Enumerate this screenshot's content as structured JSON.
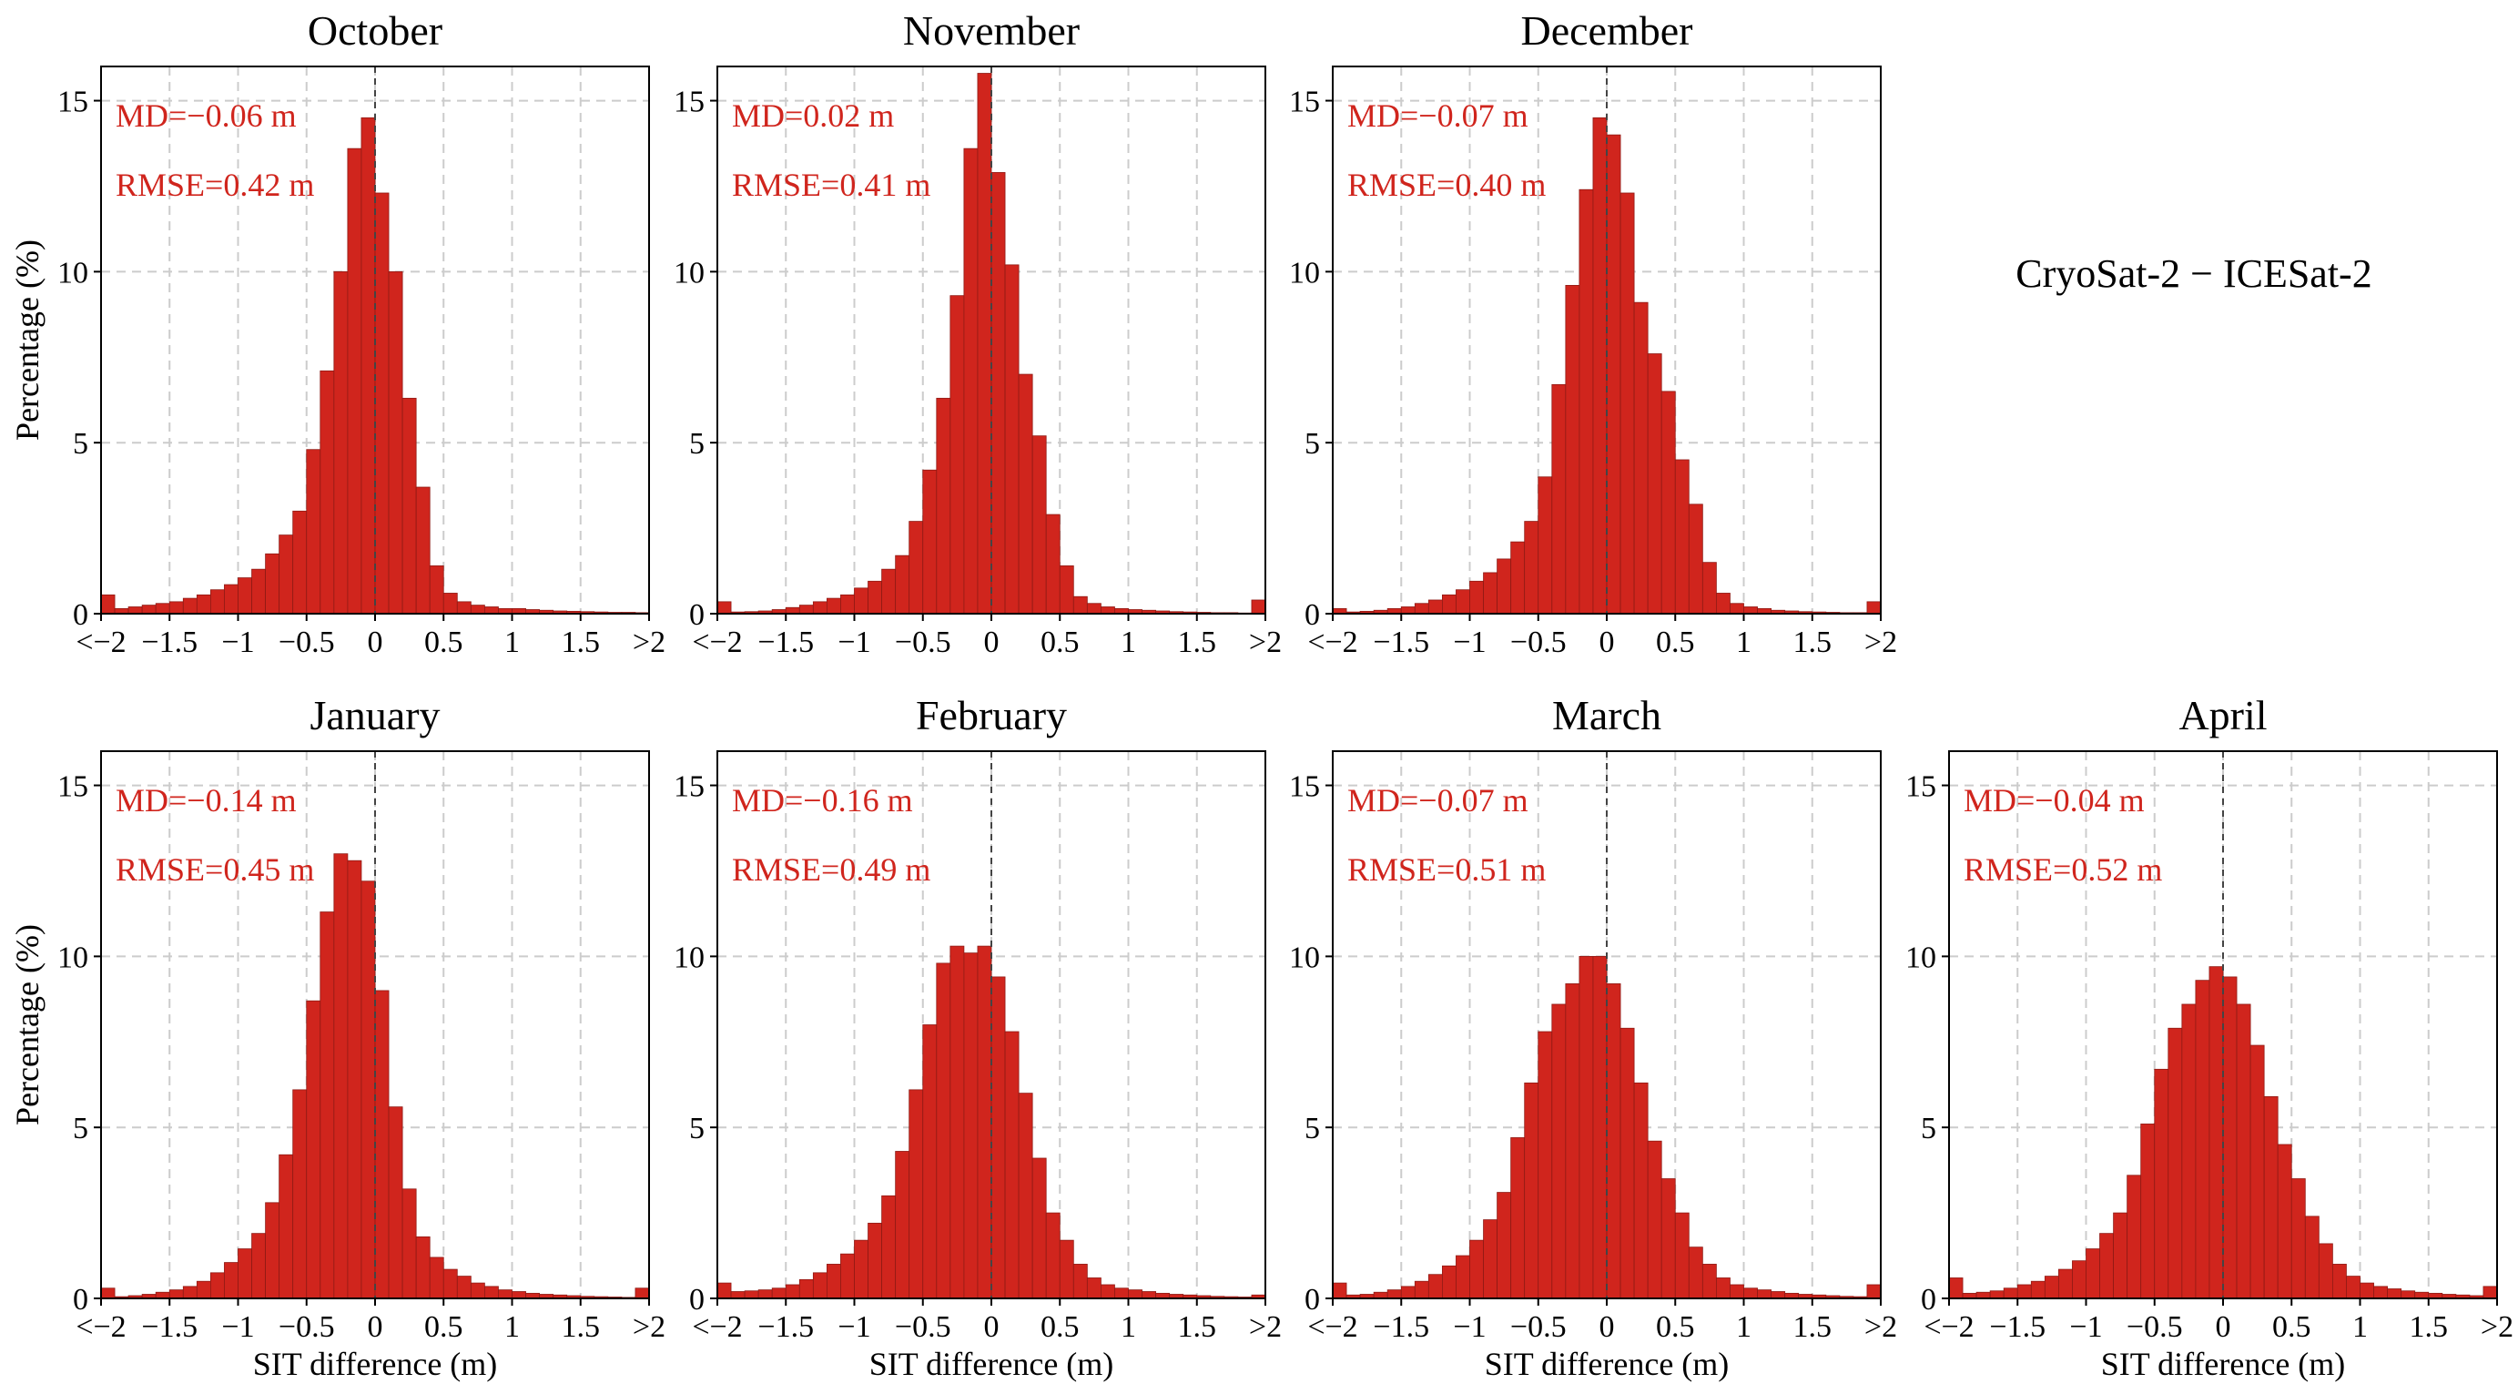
{
  "figure_label": "CryoSat-2 − ICESat-2",
  "chart_data": [
    {
      "type": "bar",
      "title": "October",
      "xlabel": "",
      "ylabel": "Percentage (%)",
      "xlim": [
        -2,
        2
      ],
      "ylim": [
        0,
        16
      ],
      "yticks": [
        0,
        5,
        10,
        15
      ],
      "xtick_labels": [
        "<−2",
        "−1.5",
        "−1",
        "−0.5",
        "0",
        "0.5",
        "1",
        "1.5",
        ">2"
      ],
      "bin_start": -2,
      "bin_width": 0.1,
      "values": [
        0.55,
        0.15,
        0.2,
        0.25,
        0.3,
        0.35,
        0.45,
        0.55,
        0.7,
        0.85,
        1.05,
        1.3,
        1.75,
        2.3,
        3.0,
        4.8,
        7.1,
        10.0,
        13.6,
        14.5,
        12.3,
        10.0,
        6.3,
        3.7,
        1.4,
        0.6,
        0.35,
        0.25,
        0.2,
        0.15,
        0.15,
        0.12,
        0.1,
        0.08,
        0.07,
        0.06,
        0.05,
        0.04,
        0.04,
        0.03
      ],
      "annotations": {
        "md": "MD=−0.06 m",
        "rmse": "RMSE=0.42 m"
      }
    },
    {
      "type": "bar",
      "title": "November",
      "xlabel": "",
      "ylabel": "",
      "xlim": [
        -2,
        2
      ],
      "ylim": [
        0,
        16
      ],
      "yticks": [
        0,
        5,
        10,
        15
      ],
      "xtick_labels": [
        "<−2",
        "−1.5",
        "−1",
        "−0.5",
        "0",
        "0.5",
        "1",
        "1.5",
        ">2"
      ],
      "bin_start": -2,
      "bin_width": 0.1,
      "values": [
        0.35,
        0.05,
        0.06,
        0.08,
        0.12,
        0.18,
        0.25,
        0.35,
        0.45,
        0.55,
        0.75,
        0.95,
        1.3,
        1.7,
        2.7,
        4.2,
        6.3,
        9.3,
        13.6,
        15.8,
        12.9,
        10.2,
        7.0,
        5.2,
        2.9,
        1.4,
        0.5,
        0.3,
        0.2,
        0.15,
        0.12,
        0.1,
        0.08,
        0.06,
        0.05,
        0.04,
        0.03,
        0.03,
        0.02,
        0.4
      ],
      "annotations": {
        "md": "MD=0.02 m",
        "rmse": "RMSE=0.41 m"
      }
    },
    {
      "type": "bar",
      "title": "December",
      "xlabel": "",
      "ylabel": "",
      "xlim": [
        -2,
        2
      ],
      "ylim": [
        0,
        16
      ],
      "yticks": [
        0,
        5,
        10,
        15
      ],
      "xtick_labels": [
        "<−2",
        "−1.5",
        "−1",
        "−0.5",
        "0",
        "0.5",
        "1",
        "1.5",
        ">2"
      ],
      "bin_start": -2,
      "bin_width": 0.1,
      "values": [
        0.15,
        0.05,
        0.07,
        0.1,
        0.15,
        0.2,
        0.3,
        0.4,
        0.55,
        0.7,
        0.95,
        1.2,
        1.6,
        2.1,
        2.7,
        4.0,
        6.7,
        9.6,
        12.4,
        14.5,
        14.0,
        12.3,
        9.1,
        7.6,
        6.5,
        4.5,
        3.2,
        1.5,
        0.6,
        0.3,
        0.2,
        0.15,
        0.1,
        0.08,
        0.06,
        0.05,
        0.04,
        0.03,
        0.03,
        0.35
      ],
      "annotations": {
        "md": "MD=−0.07 m",
        "rmse": "RMSE=0.40 m"
      }
    },
    {
      "type": "bar",
      "title": "January",
      "xlabel": "SIT difference (m)",
      "ylabel": "Percentage (%)",
      "xlim": [
        -2,
        2
      ],
      "ylim": [
        0,
        16
      ],
      "yticks": [
        0,
        5,
        10,
        15
      ],
      "xtick_labels": [
        "<−2",
        "−1.5",
        "−1",
        "−0.5",
        "0",
        "0.5",
        "1",
        "1.5",
        ">2"
      ],
      "bin_start": -2,
      "bin_width": 0.1,
      "values": [
        0.3,
        0.05,
        0.08,
        0.12,
        0.18,
        0.25,
        0.35,
        0.5,
        0.75,
        1.05,
        1.45,
        1.9,
        2.8,
        4.2,
        6.1,
        8.7,
        11.3,
        13.0,
        12.8,
        12.2,
        9.0,
        5.6,
        3.2,
        1.8,
        1.2,
        0.85,
        0.65,
        0.45,
        0.35,
        0.25,
        0.2,
        0.15,
        0.12,
        0.1,
        0.08,
        0.06,
        0.05,
        0.04,
        0.03,
        0.3
      ],
      "annotations": {
        "md": "MD=−0.14 m",
        "rmse": "RMSE=0.45 m"
      }
    },
    {
      "type": "bar",
      "title": "February",
      "xlabel": "SIT difference (m)",
      "ylabel": "",
      "xlim": [
        -2,
        2
      ],
      "ylim": [
        0,
        16
      ],
      "yticks": [
        0,
        5,
        10,
        15
      ],
      "xtick_labels": [
        "<−2",
        "−1.5",
        "−1",
        "−0.5",
        "0",
        "0.5",
        "1",
        "1.5",
        ">2"
      ],
      "bin_start": -2,
      "bin_width": 0.1,
      "values": [
        0.45,
        0.2,
        0.22,
        0.25,
        0.3,
        0.4,
        0.55,
        0.75,
        1.0,
        1.3,
        1.7,
        2.2,
        3.0,
        4.3,
        6.1,
        8.0,
        9.8,
        10.3,
        10.1,
        10.3,
        9.4,
        7.8,
        6.0,
        4.1,
        2.5,
        1.7,
        1.0,
        0.6,
        0.4,
        0.3,
        0.25,
        0.2,
        0.15,
        0.12,
        0.1,
        0.08,
        0.06,
        0.05,
        0.04,
        0.1
      ],
      "annotations": {
        "md": "MD=−0.16 m",
        "rmse": "RMSE=0.49 m"
      }
    },
    {
      "type": "bar",
      "title": "March",
      "xlabel": "SIT difference (m)",
      "ylabel": "",
      "xlim": [
        -2,
        2
      ],
      "ylim": [
        0,
        16
      ],
      "yticks": [
        0,
        5,
        10,
        15
      ],
      "xtick_labels": [
        "<−2",
        "−1.5",
        "−1",
        "−0.5",
        "0",
        "0.5",
        "1",
        "1.5",
        ">2"
      ],
      "bin_start": -2,
      "bin_width": 0.1,
      "values": [
        0.45,
        0.1,
        0.12,
        0.18,
        0.25,
        0.35,
        0.5,
        0.7,
        0.95,
        1.25,
        1.7,
        2.3,
        3.1,
        4.7,
        6.3,
        7.8,
        8.6,
        9.2,
        10.0,
        10.0,
        9.2,
        7.9,
        6.3,
        4.6,
        3.5,
        2.5,
        1.5,
        1.0,
        0.6,
        0.4,
        0.3,
        0.25,
        0.2,
        0.15,
        0.12,
        0.1,
        0.08,
        0.06,
        0.05,
        0.4
      ],
      "annotations": {
        "md": "MD=−0.07 m",
        "rmse": "RMSE=0.51 m"
      }
    },
    {
      "type": "bar",
      "title": "April",
      "xlabel": "SIT difference (m)",
      "ylabel": "",
      "xlim": [
        -2,
        2
      ],
      "ylim": [
        0,
        16
      ],
      "yticks": [
        0,
        5,
        10,
        15
      ],
      "xtick_labels": [
        "<−2",
        "−1.5",
        "−1",
        "−0.5",
        "0",
        "0.5",
        "1",
        "1.5",
        ">2"
      ],
      "bin_start": -2,
      "bin_width": 0.1,
      "values": [
        0.6,
        0.15,
        0.18,
        0.22,
        0.3,
        0.4,
        0.5,
        0.65,
        0.85,
        1.1,
        1.45,
        1.9,
        2.5,
        3.6,
        5.1,
        6.7,
        7.9,
        8.6,
        9.3,
        9.7,
        9.4,
        8.6,
        7.4,
        5.9,
        4.5,
        3.5,
        2.4,
        1.6,
        1.0,
        0.65,
        0.45,
        0.35,
        0.28,
        0.22,
        0.18,
        0.15,
        0.12,
        0.1,
        0.08,
        0.35
      ],
      "annotations": {
        "md": "MD=−0.04 m",
        "rmse": "RMSE=0.52 m"
      }
    }
  ]
}
